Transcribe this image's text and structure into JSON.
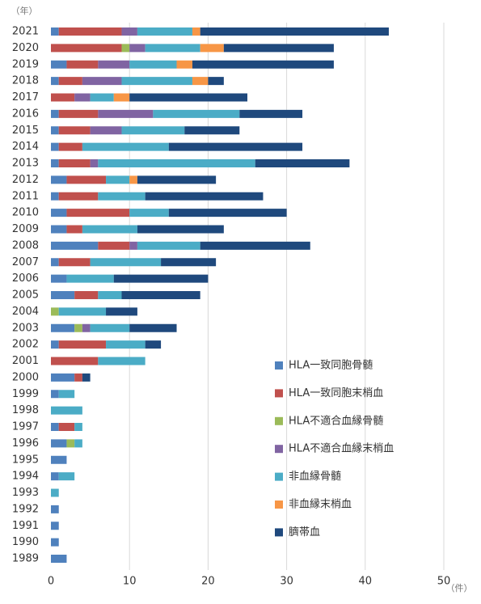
{
  "chart_data": {
    "type": "stacked_bar_horizontal",
    "y_unit": "（年）",
    "x_unit": "（件）",
    "categories": [
      "2021",
      "2020",
      "2019",
      "2018",
      "2017",
      "2016",
      "2015",
      "2014",
      "2013",
      "2012",
      "2011",
      "2010",
      "2009",
      "2008",
      "2007",
      "2006",
      "2005",
      "2004",
      "2003",
      "2002",
      "2001",
      "2000",
      "1999",
      "1998",
      "1997",
      "1996",
      "1995",
      "1994",
      "1993",
      "1992",
      "1991",
      "1990",
      "1989"
    ],
    "series": [
      {
        "name": "HLA一致同胞骨髄",
        "color": "#4f81bd",
        "values": [
          1,
          0,
          2,
          1,
          0,
          1,
          1,
          1,
          1,
          2,
          1,
          2,
          2,
          6,
          1,
          2,
          3,
          0,
          3,
          1,
          0,
          3,
          1,
          0,
          1,
          2,
          2,
          1,
          0,
          1,
          1,
          1,
          2
        ]
      },
      {
        "name": "HLA一致同胞末梢血",
        "color": "#c0504d",
        "values": [
          8,
          9,
          4,
          3,
          3,
          5,
          4,
          3,
          4,
          5,
          5,
          8,
          2,
          4,
          4,
          0,
          3,
          0,
          0,
          6,
          6,
          1,
          0,
          0,
          2,
          0,
          0,
          0,
          0,
          0,
          0,
          0,
          0
        ]
      },
      {
        "name": "HLA不適合血縁骨髄",
        "color": "#9bbb59",
        "values": [
          0,
          1,
          0,
          0,
          0,
          0,
          0,
          0,
          0,
          0,
          0,
          0,
          0,
          0,
          0,
          0,
          0,
          1,
          1,
          0,
          0,
          0,
          0,
          0,
          0,
          1,
          0,
          0,
          0,
          0,
          0,
          0,
          0
        ]
      },
      {
        "name": "HLA不適合血縁末梢血",
        "color": "#8064a2",
        "values": [
          2,
          2,
          4,
          5,
          2,
          7,
          4,
          0,
          1,
          0,
          0,
          0,
          0,
          1,
          0,
          0,
          0,
          0,
          1,
          0,
          0,
          0,
          0,
          0,
          0,
          0,
          0,
          0,
          0,
          0,
          0,
          0,
          0
        ]
      },
      {
        "name": "非血縁骨髄",
        "color": "#4bacc6",
        "values": [
          7,
          7,
          6,
          9,
          3,
          11,
          8,
          11,
          20,
          3,
          6,
          5,
          7,
          8,
          9,
          6,
          3,
          6,
          5,
          5,
          6,
          0,
          2,
          4,
          1,
          1,
          0,
          2,
          1,
          0,
          0,
          0,
          0
        ]
      },
      {
        "name": "非血縁末梢血",
        "color": "#f79646",
        "values": [
          1,
          3,
          2,
          2,
          2,
          0,
          0,
          0,
          0,
          1,
          0,
          0,
          0,
          0,
          0,
          0,
          0,
          0,
          0,
          0,
          0,
          0,
          0,
          0,
          0,
          0,
          0,
          0,
          0,
          0,
          0,
          0,
          0
        ]
      },
      {
        "name": "臍帯血",
        "color": "#1f497d",
        "values": [
          24,
          14,
          18,
          2,
          15,
          8,
          7,
          17,
          12,
          10,
          15,
          15,
          11,
          14,
          7,
          12,
          10,
          4,
          6,
          2,
          0,
          1,
          0,
          0,
          0,
          0,
          0,
          0,
          0,
          0,
          0,
          0,
          0
        ]
      }
    ],
    "xlim": [
      0,
      50
    ],
    "xticks": [
      0,
      10,
      20,
      30,
      40,
      50
    ],
    "grid": true,
    "legend": "right"
  }
}
